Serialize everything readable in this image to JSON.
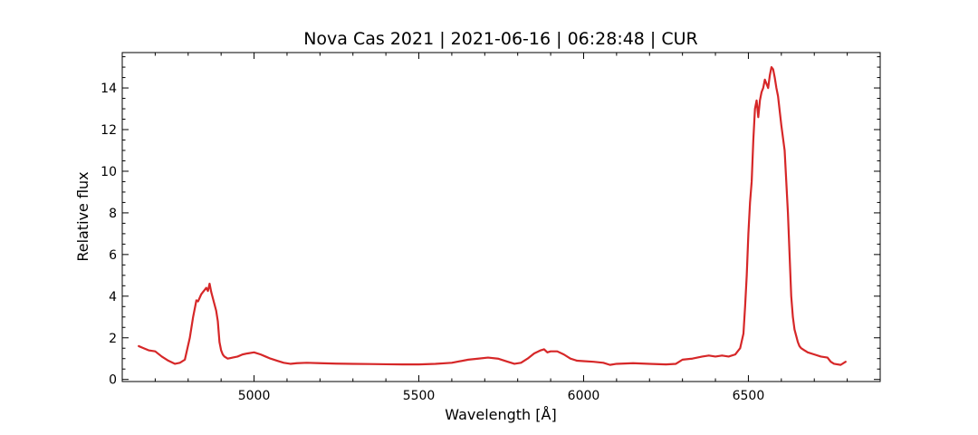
{
  "chart_data": {
    "type": "line",
    "title": "Nova Cas 2021 | 2021-06-16 | 06:28:48 | CUR",
    "xlabel": "Wavelength [Å]",
    "ylabel": "Relative flux",
    "xlim": [
      4600,
      6900
    ],
    "ylim": [
      -0.1,
      15.7
    ],
    "x_ticks": [
      5000,
      5500,
      6000,
      6500
    ],
    "x_tick_labels": [
      "5000",
      "5500",
      "6000",
      "6500"
    ],
    "y_ticks": [
      0,
      2,
      4,
      6,
      8,
      10,
      12,
      14
    ],
    "y_tick_labels": [
      "0",
      "2",
      "4",
      "6",
      "8",
      "10",
      "12",
      "14"
    ],
    "grid": false,
    "series": [
      {
        "color": "#d62728",
        "x": [
          4650,
          4665,
          4680,
          4700,
          4720,
          4740,
          4760,
          4775,
          4790,
          4805,
          4815,
          4825,
          4830,
          4840,
          4845,
          4850,
          4855,
          4860,
          4865,
          4870,
          4875,
          4880,
          4885,
          4890,
          4895,
          4900,
          4905,
          4910,
          4920,
          4935,
          4950,
          4965,
          4980,
          5000,
          5020,
          5035,
          5050,
          5070,
          5090,
          5110,
          5130,
          5160,
          5200,
          5250,
          5300,
          5350,
          5400,
          5450,
          5500,
          5550,
          5600,
          5650,
          5680,
          5710,
          5740,
          5770,
          5790,
          5810,
          5830,
          5850,
          5870,
          5880,
          5890,
          5900,
          5920,
          5940,
          5960,
          5980,
          6000,
          6030,
          6060,
          6080,
          6100,
          6150,
          6200,
          6250,
          6280,
          6300,
          6330,
          6360,
          6380,
          6400,
          6420,
          6440,
          6460,
          6475,
          6485,
          6490,
          6495,
          6500,
          6505,
          6510,
          6515,
          6520,
          6525,
          6530,
          6535,
          6540,
          6545,
          6550,
          6555,
          6560,
          6565,
          6570,
          6575,
          6580,
          6585,
          6590,
          6600,
          6610,
          6620,
          6625,
          6630,
          6635,
          6640,
          6645,
          6650,
          6655,
          6660,
          6670,
          6680,
          6700,
          6720,
          6740,
          6750,
          6760,
          6780,
          6795
        ],
        "y": [
          1.6,
          1.5,
          1.4,
          1.35,
          1.1,
          0.9,
          0.75,
          0.8,
          0.95,
          2.0,
          3.0,
          3.8,
          3.75,
          4.1,
          4.2,
          4.3,
          4.4,
          4.25,
          4.6,
          4.2,
          3.9,
          3.6,
          3.3,
          2.8,
          1.8,
          1.4,
          1.2,
          1.1,
          1.0,
          1.05,
          1.1,
          1.2,
          1.25,
          1.3,
          1.2,
          1.1,
          1.0,
          0.9,
          0.8,
          0.75,
          0.78,
          0.8,
          0.78,
          0.76,
          0.75,
          0.74,
          0.73,
          0.72,
          0.72,
          0.75,
          0.8,
          0.95,
          1.0,
          1.05,
          1.0,
          0.85,
          0.75,
          0.8,
          1.0,
          1.25,
          1.4,
          1.45,
          1.3,
          1.35,
          1.35,
          1.2,
          1.0,
          0.9,
          0.88,
          0.85,
          0.8,
          0.7,
          0.75,
          0.78,
          0.75,
          0.72,
          0.75,
          0.95,
          1.0,
          1.1,
          1.15,
          1.1,
          1.15,
          1.1,
          1.2,
          1.5,
          2.2,
          3.5,
          5.0,
          7.0,
          8.5,
          9.5,
          11.5,
          13.0,
          13.4,
          12.6,
          13.4,
          13.8,
          14.0,
          14.4,
          14.2,
          14.0,
          14.6,
          15.0,
          14.9,
          14.5,
          14.0,
          13.6,
          12.2,
          11.0,
          8.0,
          6.0,
          4.0,
          3.0,
          2.4,
          2.1,
          1.8,
          1.6,
          1.5,
          1.4,
          1.3,
          1.2,
          1.1,
          1.05,
          0.85,
          0.75,
          0.7,
          0.85
        ]
      }
    ]
  }
}
